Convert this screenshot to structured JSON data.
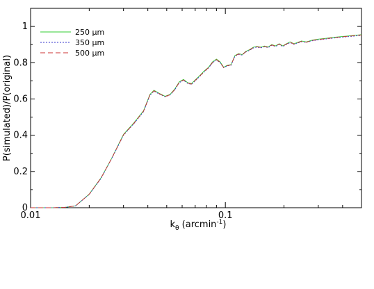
{
  "chart_data": {
    "type": "line",
    "title": "",
    "xlabel": "k",
    "xlabel_sub": "θ",
    "xlabel_unit": " (arcmin",
    "xlabel_exp": "-1",
    "xlabel_close": ")",
    "ylabel": "P(simulated)/P(original)",
    "xscale": "log",
    "xlim": [
      0.01,
      0.5
    ],
    "ylim": [
      0,
      1.1
    ],
    "xticks": [
      {
        "value": 0.01,
        "label": "0.01"
      },
      {
        "value": 0.1,
        "label": "0.1"
      }
    ],
    "yticks": [
      {
        "value": 0,
        "label": "0"
      },
      {
        "value": 0.2,
        "label": "0.2"
      },
      {
        "value": 0.4,
        "label": "0.4"
      },
      {
        "value": 0.6,
        "label": "0.6"
      },
      {
        "value": 0.8,
        "label": "0.8"
      },
      {
        "value": 1,
        "label": "1"
      }
    ],
    "grid": false,
    "legend_position": "top-left",
    "series": [
      {
        "name": "250 µm",
        "color": "#33cc33",
        "dash": "solid",
        "x": [
          0.01,
          0.013,
          0.015,
          0.017,
          0.02,
          0.023,
          0.026,
          0.03,
          0.034,
          0.038,
          0.041,
          0.043,
          0.046,
          0.049,
          0.052,
          0.055,
          0.058,
          0.061,
          0.064,
          0.067,
          0.07,
          0.074,
          0.078,
          0.082,
          0.086,
          0.09,
          0.094,
          0.098,
          0.102,
          0.107,
          0.112,
          0.117,
          0.122,
          0.127,
          0.133,
          0.139,
          0.145,
          0.152,
          0.159,
          0.166,
          0.173,
          0.181,
          0.189,
          0.197,
          0.206,
          0.215,
          0.225,
          0.235,
          0.246,
          0.26,
          0.28,
          0.3,
          0.33,
          0.36,
          0.4,
          0.45,
          0.5
        ],
        "y": [
          0.0,
          0.0,
          0.002,
          0.01,
          0.075,
          0.165,
          0.27,
          0.405,
          0.47,
          0.535,
          0.625,
          0.648,
          0.63,
          0.615,
          0.625,
          0.655,
          0.695,
          0.708,
          0.69,
          0.685,
          0.705,
          0.73,
          0.755,
          0.775,
          0.805,
          0.82,
          0.805,
          0.775,
          0.785,
          0.79,
          0.84,
          0.85,
          0.845,
          0.862,
          0.872,
          0.885,
          0.89,
          0.886,
          0.892,
          0.887,
          0.9,
          0.893,
          0.905,
          0.893,
          0.905,
          0.915,
          0.905,
          0.912,
          0.92,
          0.915,
          0.925,
          0.93,
          0.935,
          0.94,
          0.945,
          0.95,
          0.955
        ]
      },
      {
        "name": "350 µm",
        "color": "#3333cc",
        "dash": "dotted",
        "x": [
          0.01,
          0.013,
          0.015,
          0.017,
          0.02,
          0.023,
          0.026,
          0.03,
          0.034,
          0.038,
          0.041,
          0.043,
          0.046,
          0.049,
          0.052,
          0.055,
          0.058,
          0.061,
          0.064,
          0.067,
          0.07,
          0.074,
          0.078,
          0.082,
          0.086,
          0.09,
          0.094,
          0.098,
          0.102,
          0.107,
          0.112,
          0.117,
          0.122,
          0.127,
          0.133,
          0.139,
          0.145,
          0.152,
          0.159,
          0.166,
          0.173,
          0.181,
          0.189,
          0.197,
          0.206,
          0.215,
          0.225,
          0.235,
          0.246,
          0.26,
          0.28,
          0.3,
          0.33,
          0.36,
          0.4,
          0.45,
          0.5
        ],
        "y": [
          0.0,
          0.0,
          0.002,
          0.01,
          0.073,
          0.162,
          0.268,
          0.4,
          0.465,
          0.53,
          0.62,
          0.643,
          0.626,
          0.612,
          0.622,
          0.65,
          0.69,
          0.703,
          0.686,
          0.68,
          0.7,
          0.725,
          0.75,
          0.771,
          0.8,
          0.815,
          0.8,
          0.772,
          0.782,
          0.786,
          0.836,
          0.846,
          0.842,
          0.858,
          0.868,
          0.881,
          0.886,
          0.882,
          0.888,
          0.883,
          0.896,
          0.889,
          0.901,
          0.889,
          0.901,
          0.911,
          0.901,
          0.908,
          0.916,
          0.912,
          0.921,
          0.926,
          0.931,
          0.936,
          0.941,
          0.946,
          0.951
        ]
      },
      {
        "name": "500 µm",
        "color": "#cc3333",
        "dash": "dashed",
        "x": [
          0.01,
          0.013,
          0.015,
          0.017,
          0.02,
          0.023,
          0.026,
          0.03,
          0.034,
          0.038,
          0.041,
          0.043,
          0.046,
          0.049,
          0.052,
          0.055,
          0.058,
          0.061,
          0.064,
          0.067,
          0.07,
          0.074,
          0.078,
          0.082,
          0.086,
          0.09,
          0.094,
          0.098,
          0.102,
          0.107,
          0.112,
          0.117,
          0.122,
          0.127,
          0.133,
          0.139,
          0.145,
          0.152,
          0.159,
          0.166,
          0.173,
          0.181,
          0.189,
          0.197,
          0.206,
          0.215,
          0.225,
          0.235,
          0.246,
          0.26,
          0.28,
          0.3,
          0.33,
          0.36,
          0.4,
          0.45,
          0.5
        ],
        "y": [
          0.0,
          0.0,
          0.002,
          0.01,
          0.074,
          0.164,
          0.269,
          0.402,
          0.467,
          0.532,
          0.622,
          0.645,
          0.628,
          0.613,
          0.623,
          0.652,
          0.692,
          0.705,
          0.688,
          0.682,
          0.702,
          0.727,
          0.752,
          0.773,
          0.802,
          0.817,
          0.802,
          0.773,
          0.783,
          0.788,
          0.838,
          0.848,
          0.843,
          0.86,
          0.87,
          0.883,
          0.888,
          0.884,
          0.89,
          0.885,
          0.898,
          0.891,
          0.903,
          0.891,
          0.903,
          0.913,
          0.903,
          0.91,
          0.918,
          0.913,
          0.923,
          0.928,
          0.933,
          0.938,
          0.943,
          0.948,
          0.953
        ]
      }
    ]
  }
}
